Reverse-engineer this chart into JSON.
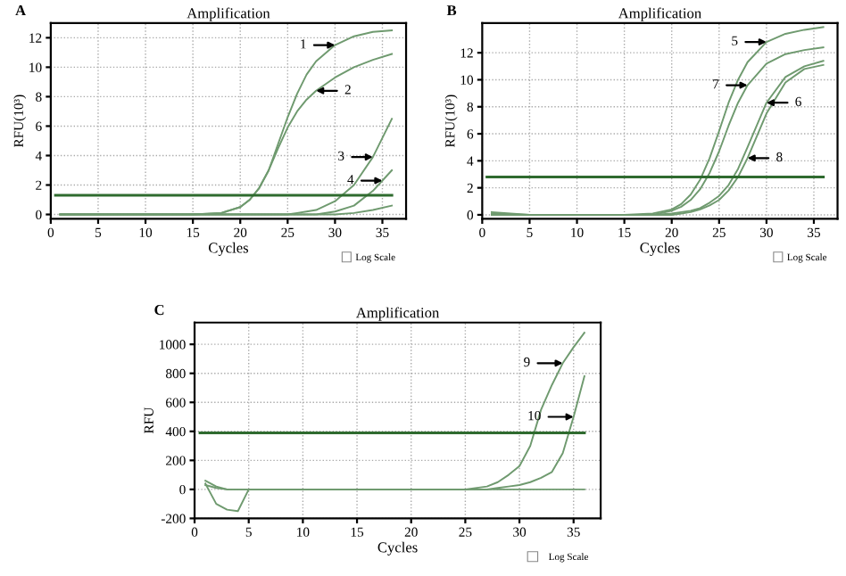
{
  "chart_data": [
    {
      "type": "line",
      "title": "Amplification",
      "xlabel": "Cycles",
      "ylabel": "RFU(10³)",
      "annotations": [
        "A",
        "Log Scale",
        {
          "text": "1",
          "x": 30,
          "y": 11.5
        },
        {
          "text": "2",
          "x": 28,
          "y": 8.4
        },
        {
          "text": "3",
          "x": 34,
          "y": 3.9
        },
        {
          "text": "4",
          "x": 35,
          "y": 2.3
        }
      ],
      "x": [
        1,
        5,
        10,
        15,
        18,
        20,
        21,
        22,
        23,
        24,
        25,
        26,
        27,
        28,
        30,
        32,
        34,
        36
      ],
      "series": [
        {
          "color": "#6f9a6f",
          "values": [
            0,
            0,
            0,
            0,
            0.1,
            0.5,
            1.0,
            1.8,
            3.0,
            4.8,
            6.6,
            8.2,
            9.5,
            10.4,
            11.5,
            12.1,
            12.4,
            12.5
          ]
        },
        {
          "color": "#6f9a6f",
          "values": [
            0,
            0,
            0,
            0,
            0.1,
            0.5,
            1.0,
            1.8,
            3.0,
            4.5,
            5.9,
            7.0,
            7.8,
            8.4,
            9.3,
            10.0,
            10.5,
            10.9
          ]
        },
        {
          "color": "#6f9a6f",
          "values": [
            0,
            0,
            0,
            0,
            0,
            0,
            0,
            0,
            0,
            0,
            0,
            0.1,
            0.2,
            0.3,
            0.9,
            2.0,
            3.9,
            6.5
          ]
        },
        {
          "color": "#6f9a6f",
          "values": [
            0,
            0,
            0,
            0,
            0,
            0,
            0,
            0,
            0,
            0,
            0,
            0,
            0,
            0,
            0.2,
            0.6,
            1.6,
            3.0
          ]
        },
        {
          "color": "#6f9a6f",
          "values": [
            0,
            0,
            0,
            0,
            0,
            0,
            0,
            0,
            0,
            0,
            0,
            0,
            0,
            0,
            0,
            0.1,
            0.3,
            0.6
          ]
        }
      ],
      "ref_lines": [
        {
          "axis": "y",
          "value": 1.3,
          "color": "#2f6b2f"
        }
      ],
      "xlim": [
        0,
        37.5
      ],
      "xticks": [
        0,
        5,
        10,
        15,
        20,
        25,
        30,
        35
      ],
      "ylim": [
        -0.3,
        13
      ],
      "yticks": [
        0,
        2,
        4,
        6,
        8,
        10,
        12
      ],
      "grid": true
    },
    {
      "type": "line",
      "title": "Amplification",
      "xlabel": "Cycles",
      "ylabel": "RFU(10³)",
      "annotations": [
        "B",
        "Log Scale",
        {
          "text": "5",
          "x": 30,
          "y": 12.8
        },
        {
          "text": "6",
          "x": 30,
          "y": 8.3
        },
        {
          "text": "7",
          "x": 28,
          "y": 9.6
        },
        {
          "text": "8",
          "x": 28,
          "y": 4.2
        }
      ],
      "x": [
        1,
        5,
        10,
        15,
        18,
        20,
        21,
        22,
        23,
        24,
        25,
        26,
        27,
        28,
        30,
        32,
        34,
        36
      ],
      "series": [
        {
          "color": "#6f9a6f",
          "values": [
            0.1,
            0,
            0,
            0,
            0.1,
            0.4,
            0.8,
            1.5,
            2.6,
            4.2,
            6.2,
            8.3,
            10.0,
            11.3,
            12.8,
            13.4,
            13.7,
            13.9
          ]
        },
        {
          "color": "#6f9a6f",
          "values": [
            0,
            0,
            0,
            0,
            0,
            0.3,
            0.6,
            1.1,
            1.9,
            3.1,
            4.7,
            6.6,
            8.3,
            9.6,
            11.2,
            11.9,
            12.2,
            12.4
          ]
        },
        {
          "color": "#6f9a6f",
          "values": [
            0.2,
            0,
            0,
            0,
            0,
            0.1,
            0.2,
            0.3,
            0.5,
            0.9,
            1.4,
            2.2,
            3.4,
            5.0,
            8.3,
            10.2,
            11.0,
            11.4
          ]
        },
        {
          "color": "#6f9a6f",
          "values": [
            0,
            0,
            0,
            0,
            0,
            0,
            0.1,
            0.2,
            0.4,
            0.7,
            1.1,
            1.8,
            2.8,
            4.2,
            7.5,
            9.8,
            10.8,
            11.1
          ]
        }
      ],
      "ref_lines": [
        {
          "axis": "y",
          "value": 2.8,
          "color": "#2f6b2f"
        }
      ],
      "xlim": [
        0,
        37.5
      ],
      "xticks": [
        0,
        5,
        10,
        15,
        20,
        25,
        30,
        35
      ],
      "ylim": [
        -0.3,
        14.2
      ],
      "yticks": [
        0,
        2,
        4,
        6,
        8,
        10,
        12
      ],
      "grid": true
    },
    {
      "type": "line",
      "title": "Amplification",
      "xlabel": "Cycles",
      "ylabel": "RFU",
      "annotations": [
        "C",
        "Log Scale",
        {
          "text": "9",
          "x": 34,
          "y": 870
        },
        {
          "text": "10",
          "x": 35,
          "y": 500
        }
      ],
      "x": [
        1,
        2,
        3,
        4,
        5,
        10,
        15,
        20,
        25,
        27,
        28,
        29,
        30,
        31,
        32,
        33,
        34,
        35,
        36
      ],
      "series": [
        {
          "color": "#6f9a6f",
          "values": [
            60,
            20,
            0,
            0,
            0,
            0,
            0,
            0,
            0,
            20,
            50,
            100,
            160,
            300,
            550,
            720,
            870,
            980,
            1080
          ]
        },
        {
          "color": "#6f9a6f",
          "values": [
            40,
            -100,
            -140,
            -150,
            0,
            0,
            0,
            0,
            0,
            0,
            10,
            20,
            30,
            50,
            80,
            120,
            250,
            500,
            780
          ]
        },
        {
          "color": "#6f9a6f",
          "values": [
            30,
            10,
            0,
            0,
            0,
            0,
            0,
            0,
            0,
            0,
            0,
            0,
            0,
            0,
            0,
            0,
            0,
            0,
            0
          ]
        }
      ],
      "ref_lines": [
        {
          "axis": "y",
          "value": 390,
          "color": "#2f6b2f"
        }
      ],
      "xlim": [
        0,
        37.5
      ],
      "xticks": [
        0,
        5,
        10,
        15,
        20,
        25,
        30,
        35
      ],
      "ylim": [
        -200,
        1150
      ],
      "yticks": [
        -200,
        0,
        200,
        400,
        600,
        800,
        1000
      ],
      "grid": true
    }
  ]
}
